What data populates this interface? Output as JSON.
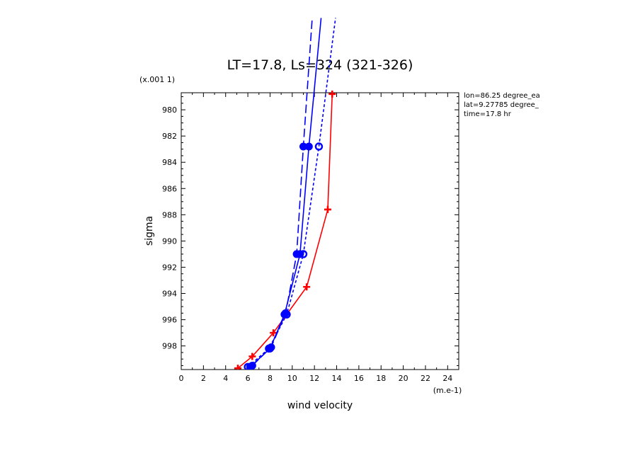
{
  "chart_data": {
    "type": "line",
    "title": "LT=17.8, Ls=324 (321-326)",
    "xlabel": "wind velocity",
    "ylabel": "sigma",
    "x_unit": "(m.e-1)",
    "y_unit": "(x.001 1)",
    "xlim": [
      0,
      25
    ],
    "ylim": [
      999.8,
      978.7
    ],
    "x_ticks": [
      "0",
      "2",
      "4",
      "6",
      "8",
      "10",
      "12",
      "14",
      "16",
      "18",
      "20",
      "22",
      "24"
    ],
    "y_ticks": [
      "980",
      "982",
      "984",
      "986",
      "988",
      "990",
      "992",
      "994",
      "996",
      "998"
    ],
    "info_lines": [
      "lon=86.25 degree_ea",
      "lat=9.27785 degree_",
      "time=17.8 hr"
    ],
    "grid": false,
    "series": [
      {
        "color": "#ff0000",
        "dash": "solid",
        "marker": "plus",
        "x": [
          5.1,
          6.4,
          8.3,
          11.3,
          13.2,
          13.6
        ],
        "y": [
          999.7,
          998.8,
          997.0,
          993.5,
          987.6,
          978.8
        ]
      },
      {
        "color": "#0000ff",
        "dash": "solid",
        "marker": "circle",
        "x": [
          6.2,
          8.0,
          9.3,
          10.7,
          11.5,
          12.6
        ],
        "y": [
          999.6,
          998.2,
          995.6,
          991.0,
          982.8,
          973.0
        ]
      },
      {
        "color": "#0000ff",
        "dash": "long",
        "marker": "circle",
        "x": [
          6.4,
          8.1,
          9.4,
          10.4,
          11.0,
          11.8
        ],
        "y": [
          999.5,
          998.1,
          995.5,
          991.0,
          982.8,
          973.0
        ]
      },
      {
        "color": "#0000ff",
        "dash": "short",
        "marker": "ring",
        "x": [
          6.0,
          7.9,
          9.5,
          11.0,
          12.4,
          13.9
        ],
        "y": [
          999.6,
          998.2,
          995.6,
          991.0,
          982.8,
          973.0
        ]
      }
    ]
  }
}
